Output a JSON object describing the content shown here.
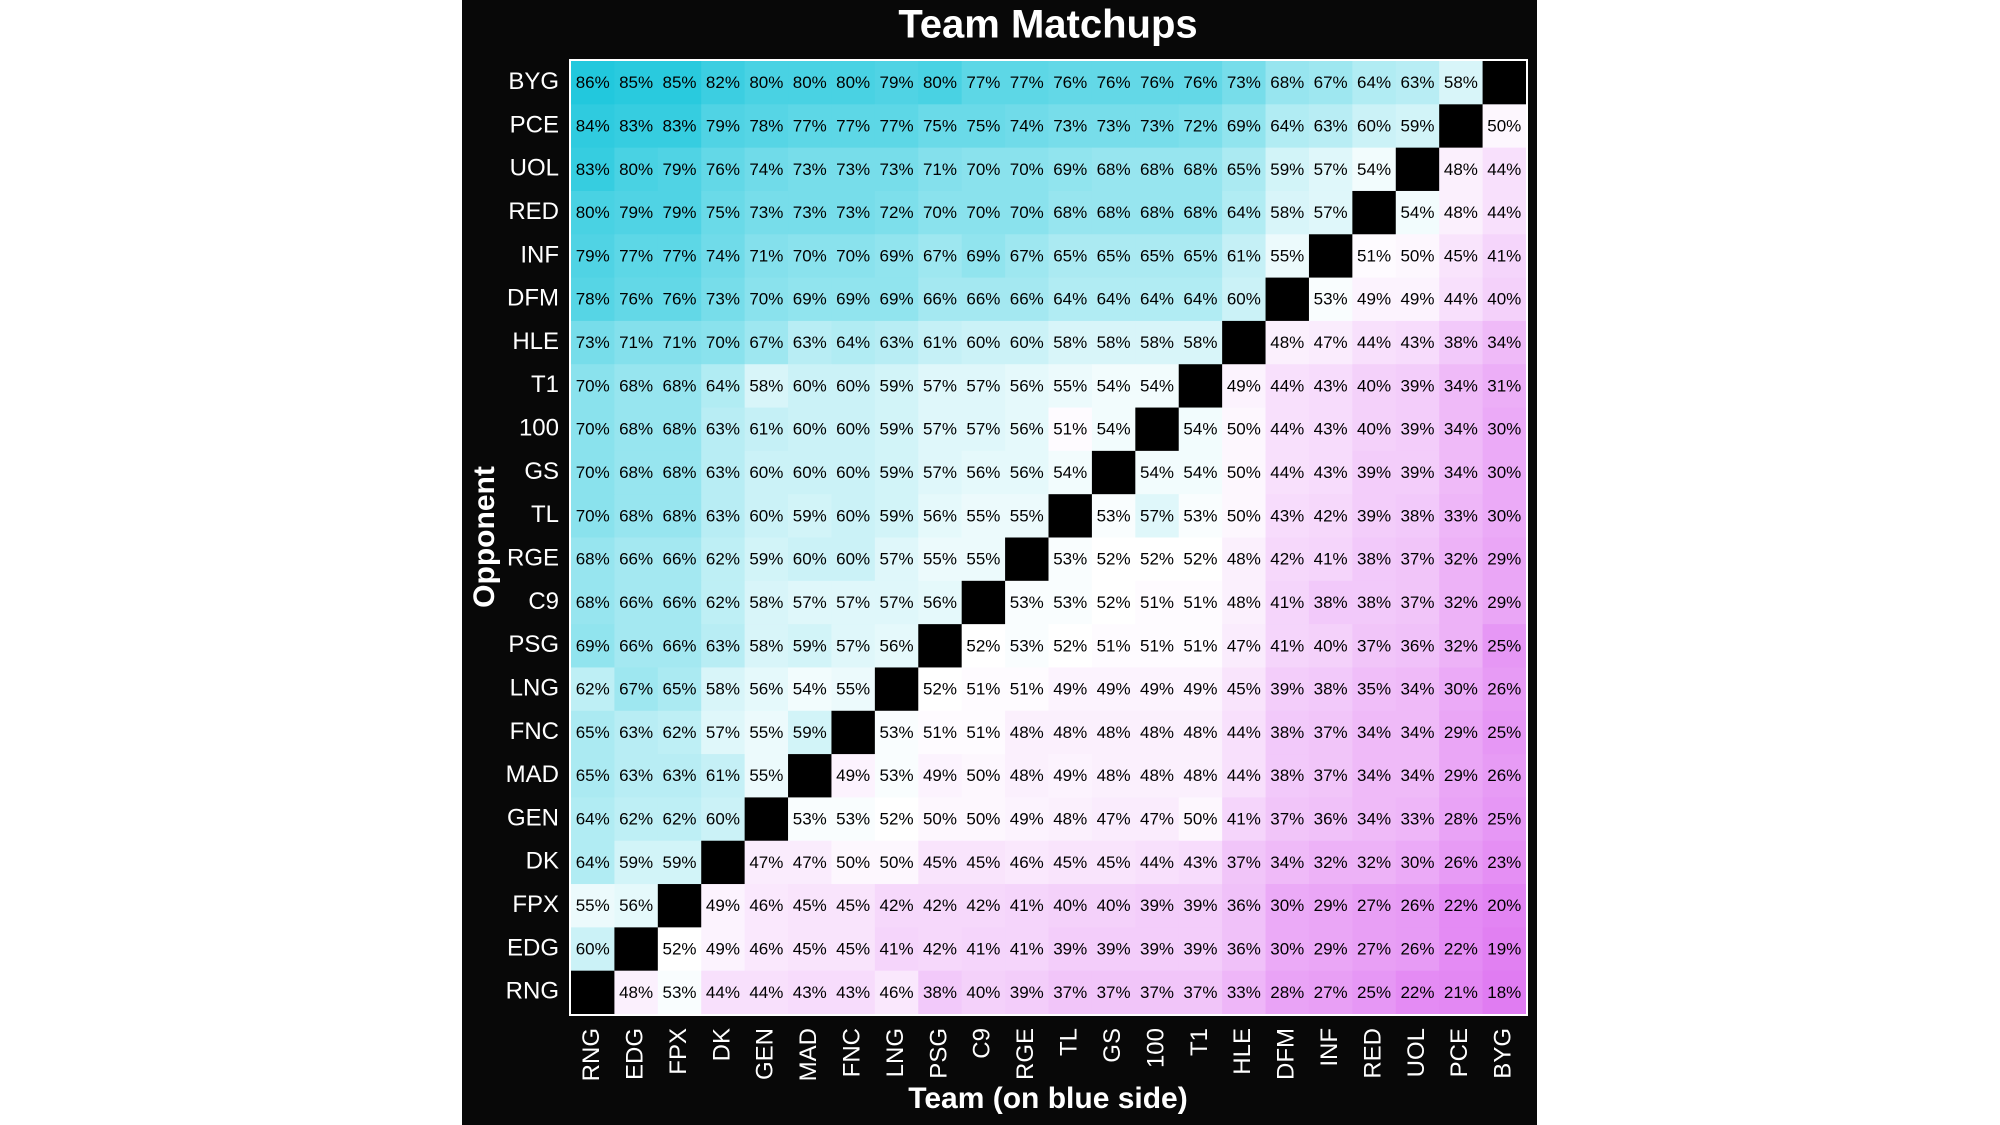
{
  "chart_data": {
    "type": "heatmap",
    "title": "Team Matchups",
    "x_label": "Team (on blue side)",
    "y_label": "Opponent",
    "x_categories": [
      "RNG",
      "EDG",
      "FPX",
      "DK",
      "GEN",
      "MAD",
      "FNC",
      "LNG",
      "PSG",
      "C9",
      "RGE",
      "TL",
      "GS",
      "100",
      "T1",
      "HLE",
      "DFM",
      "INF",
      "RED",
      "UOL",
      "PCE",
      "BYG"
    ],
    "y_categories": [
      "BYG",
      "PCE",
      "UOL",
      "RED",
      "INF",
      "DFM",
      "HLE",
      "T1",
      "100",
      "GS",
      "TL",
      "RGE",
      "C9",
      "PSG",
      "LNG",
      "FNC",
      "MAD",
      "GEN",
      "DK",
      "FPX",
      "EDG",
      "RNG"
    ],
    "colors": [
      "#e07cf2",
      "#ffffff",
      "#22c8dd"
    ],
    "values": [
      [
        86,
        85,
        85,
        82,
        80,
        80,
        80,
        79,
        80,
        77,
        77,
        76,
        76,
        76,
        76,
        73,
        68,
        67,
        64,
        63,
        58,
        null
      ],
      [
        84,
        83,
        83,
        79,
        78,
        77,
        77,
        77,
        75,
        75,
        74,
        73,
        73,
        73,
        72,
        69,
        64,
        63,
        60,
        59,
        null,
        50
      ],
      [
        83,
        80,
        79,
        76,
        74,
        73,
        73,
        73,
        71,
        70,
        70,
        69,
        68,
        68,
        68,
        65,
        59,
        57,
        54,
        null,
        48,
        44
      ],
      [
        80,
        79,
        79,
        75,
        73,
        73,
        73,
        72,
        70,
        70,
        70,
        68,
        68,
        68,
        68,
        64,
        58,
        57,
        null,
        54,
        48,
        44
      ],
      [
        79,
        77,
        77,
        74,
        71,
        70,
        70,
        69,
        67,
        69,
        67,
        65,
        65,
        65,
        65,
        61,
        55,
        null,
        51,
        50,
        45,
        41
      ],
      [
        78,
        76,
        76,
        73,
        70,
        69,
        69,
        69,
        66,
        66,
        66,
        64,
        64,
        64,
        64,
        60,
        null,
        53,
        49,
        49,
        44,
        40
      ],
      [
        73,
        71,
        71,
        70,
        67,
        63,
        64,
        63,
        61,
        60,
        60,
        58,
        58,
        58,
        58,
        null,
        48,
        47,
        44,
        43,
        38,
        34
      ],
      [
        70,
        68,
        68,
        64,
        58,
        60,
        60,
        59,
        57,
        57,
        56,
        55,
        54,
        54,
        null,
        49,
        44,
        43,
        40,
        39,
        34,
        31
      ],
      [
        70,
        68,
        68,
        63,
        61,
        60,
        60,
        59,
        57,
        57,
        56,
        51,
        54,
        null,
        54,
        50,
        44,
        43,
        40,
        39,
        34,
        30
      ],
      [
        70,
        68,
        68,
        63,
        60,
        60,
        60,
        59,
        57,
        56,
        56,
        54,
        null,
        54,
        54,
        50,
        44,
        43,
        39,
        39,
        34,
        30
      ],
      [
        70,
        68,
        68,
        63,
        60,
        59,
        60,
        59,
        56,
        55,
        55,
        null,
        53,
        57,
        53,
        50,
        43,
        42,
        39,
        38,
        33,
        30
      ],
      [
        68,
        66,
        66,
        62,
        59,
        60,
        60,
        57,
        55,
        55,
        null,
        53,
        52,
        52,
        52,
        48,
        42,
        41,
        38,
        37,
        32,
        29
      ],
      [
        68,
        66,
        66,
        62,
        58,
        57,
        57,
        57,
        56,
        null,
        53,
        53,
        52,
        51,
        51,
        48,
        41,
        38,
        38,
        37,
        32,
        29
      ],
      [
        69,
        66,
        66,
        63,
        58,
        59,
        57,
        56,
        null,
        52,
        53,
        52,
        51,
        51,
        51,
        47,
        41,
        40,
        37,
        36,
        32,
        25
      ],
      [
        62,
        67,
        65,
        58,
        56,
        54,
        55,
        null,
        52,
        51,
        51,
        49,
        49,
        49,
        49,
        45,
        39,
        38,
        35,
        34,
        30,
        26
      ],
      [
        65,
        63,
        62,
        57,
        55,
        59,
        null,
        53,
        51,
        51,
        48,
        48,
        48,
        48,
        48,
        44,
        38,
        37,
        34,
        34,
        29,
        25
      ],
      [
        65,
        63,
        63,
        61,
        55,
        null,
        49,
        53,
        49,
        50,
        48,
        49,
        48,
        48,
        48,
        44,
        38,
        37,
        34,
        34,
        29,
        26
      ],
      [
        64,
        62,
        62,
        60,
        null,
        53,
        53,
        52,
        50,
        50,
        49,
        48,
        47,
        47,
        50,
        41,
        37,
        36,
        34,
        33,
        28,
        25
      ],
      [
        64,
        59,
        59,
        null,
        47,
        47,
        50,
        50,
        45,
        45,
        46,
        45,
        45,
        44,
        43,
        37,
        34,
        32,
        32,
        30,
        26,
        23
      ],
      [
        55,
        56,
        null,
        49,
        46,
        45,
        45,
        42,
        42,
        42,
        41,
        40,
        40,
        39,
        39,
        36,
        30,
        29,
        27,
        26,
        22,
        20
      ],
      [
        60,
        null,
        52,
        49,
        46,
        45,
        45,
        41,
        42,
        41,
        41,
        39,
        39,
        39,
        39,
        36,
        30,
        29,
        27,
        26,
        22,
        19
      ],
      [
        null,
        48,
        53,
        44,
        44,
        43,
        43,
        46,
        38,
        40,
        39,
        37,
        37,
        37,
        37,
        33,
        28,
        27,
        25,
        22,
        21,
        18
      ]
    ],
    "value_labels": [
      [
        "86%",
        "85%",
        "85%",
        "82%",
        "80%",
        "80%",
        "80%",
        "79%",
        "80%",
        "77%",
        "77%",
        "76%",
        "76%",
        "76%",
        "76%",
        "73%",
        "68%",
        "67%",
        "64%",
        "63%",
        "58%",
        null
      ],
      [
        "84%",
        "83%",
        "83%",
        "79%",
        "78%",
        "77%",
        "77%",
        "77%",
        "75%",
        "75%",
        "74%",
        "73%",
        "73%",
        "73%",
        "72%",
        "69%",
        "64%",
        "63%",
        "60%",
        "59%",
        null,
        "50%"
      ],
      [
        "83%",
        "80%",
        "79%",
        "76%",
        "74%",
        "73%",
        "73%",
        "73%",
        "71%",
        "70%",
        "70%",
        "69%",
        "68%",
        "68%",
        "68%",
        "65%",
        "59%",
        "57%",
        "54%",
        null,
        "48%",
        "44%"
      ],
      [
        "80%",
        "79%",
        "79%",
        "75%",
        "73%",
        "73%",
        "73%",
        "72%",
        "70%",
        "70%",
        "70%",
        "68%",
        "68%",
        "68%",
        "68%",
        "64%",
        "58%",
        "57%",
        null,
        "54%",
        "48%",
        "44%"
      ],
      [
        "79%",
        "77%",
        "77%",
        "74%",
        "71%",
        "70%",
        "70%",
        "69%",
        "67%",
        "69%",
        "67%",
        "65%",
        "65%",
        "65%",
        "65%",
        "61%",
        "55%",
        null,
        "51%",
        "50%",
        "45%",
        "41%"
      ],
      [
        "78%",
        "76%",
        "76%",
        "73%",
        "70%",
        "69%",
        "69%",
        "69%",
        "66%",
        "66%",
        "66%",
        "64%",
        "64%",
        "64%",
        "64%",
        "60%",
        null,
        "53%",
        "49%",
        "49%",
        "44%",
        "40%"
      ],
      [
        "73%",
        "71%",
        "71%",
        "70%",
        "67%",
        "63%",
        "64%",
        "63%",
        "61%",
        "60%",
        "60%",
        "58%",
        "58%",
        "58%",
        "58%",
        null,
        "48%",
        "47%",
        "44%",
        "43%",
        "38%",
        "34%"
      ],
      [
        "70%",
        "68%",
        "68%",
        "64%",
        "58%",
        "60%",
        "60%",
        "59%",
        "57%",
        "57%",
        "56%",
        "55%",
        "54%",
        "54%",
        null,
        "49%",
        "44%",
        "43%",
        "40%",
        "39%",
        "34%",
        "31%"
      ],
      [
        "70%",
        "68%",
        "68%",
        "63%",
        "61%",
        "60%",
        "60%",
        "59%",
        "57%",
        "57%",
        "56%",
        "51%",
        "54%",
        null,
        "54%",
        "50%",
        "44%",
        "43%",
        "40%",
        "39%",
        "34%",
        "30%"
      ],
      [
        "70%",
        "68%",
        "68%",
        "63%",
        "60%",
        "60%",
        "60%",
        "59%",
        "57%",
        "56%",
        "56%",
        "54%",
        null,
        "54%",
        "54%",
        "50%",
        "44%",
        "43%",
        "39%",
        "39%",
        "34%",
        "30%"
      ],
      [
        "70%",
        "68%",
        "68%",
        "63%",
        "60%",
        "59%",
        "60%",
        "59%",
        "56%",
        "55%",
        "55%",
        null,
        "53%",
        "57%",
        "53%",
        "50%",
        "43%",
        "42%",
        "39%",
        "38%",
        "33%",
        "30%"
      ],
      [
        "68%",
        "66%",
        "66%",
        "62%",
        "59%",
        "60%",
        "60%",
        "57%",
        "55%",
        "55%",
        null,
        "53%",
        "52%",
        "52%",
        "52%",
        "48%",
        "42%",
        "41%",
        "38%",
        "37%",
        "32%",
        "29%"
      ],
      [
        "68%",
        "66%",
        "66%",
        "62%",
        "58%",
        "57%",
        "57%",
        "57%",
        "56%",
        null,
        "53%",
        "53%",
        "52%",
        "51%",
        "51%",
        "48%",
        "41%",
        "38%",
        "38%",
        "37%",
        "32%",
        "29%"
      ],
      [
        "69%",
        "66%",
        "66%",
        "63%",
        "58%",
        "59%",
        "57%",
        "56%",
        null,
        "52%",
        "53%",
        "52%",
        "51%",
        "51%",
        "51%",
        "47%",
        "41%",
        "40%",
        "37%",
        "36%",
        "32%",
        "25%"
      ],
      [
        "62%",
        "67%",
        "65%",
        "58%",
        "56%",
        "54%",
        "55%",
        null,
        "52%",
        "51%",
        "51%",
        "49%",
        "49%",
        "49%",
        "49%",
        "45%",
        "39%",
        "38%",
        "35%",
        "34%",
        "30%",
        "26%"
      ],
      [
        "65%",
        "63%",
        "62%",
        "57%",
        "55%",
        "59%",
        null,
        "53%",
        "51%",
        "51%",
        "48%",
        "48%",
        "48%",
        "48%",
        "48%",
        "44%",
        "38%",
        "37%",
        "34%",
        "34%",
        "29%",
        "25%"
      ],
      [
        "65%",
        "63%",
        "63%",
        "61%",
        "55%",
        null,
        "49%",
        "53%",
        "49%",
        "50%",
        "48%",
        "49%",
        "48%",
        "48%",
        "48%",
        "44%",
        "38%",
        "37%",
        "34%",
        "34%",
        "29%",
        "26%"
      ],
      [
        "64%",
        "62%",
        "62%",
        "60%",
        null,
        "53%",
        "53%",
        "52%",
        "50%",
        "50%",
        "49%",
        "48%",
        "47%",
        "47%",
        "50%",
        "41%",
        "37%",
        "36%",
        "34%",
        "33%",
        "28%",
        "25%"
      ],
      [
        "64%",
        "59%",
        "59%",
        null,
        "47%",
        "47%",
        "50%",
        "50%",
        "45%",
        "45%",
        "46%",
        "45%",
        "45%",
        "44%",
        "43%",
        "37%",
        "34%",
        "32%",
        "32%",
        "30%",
        "26%",
        "23%"
      ],
      [
        "55%",
        "56%",
        null,
        "49%",
        "46%",
        "45%",
        "45%",
        "42%",
        "42%",
        "42%",
        "41%",
        "40%",
        "40%",
        "39%",
        "39%",
        "36%",
        "30%",
        "29%",
        "27%",
        "26%",
        "22%",
        "20%"
      ],
      [
        "60%",
        null,
        "52%",
        "49%",
        "46%",
        "45%",
        "45%",
        "41%",
        "42%",
        "41%",
        "41%",
        "39%",
        "39%",
        "39%",
        "39%",
        "36%",
        "30%",
        "29%",
        "27%",
        "26%",
        "22%",
        "19%"
      ],
      [
        null,
        "48%",
        "53%",
        "44%",
        "44%",
        "43%",
        "43%",
        "46%",
        "38%",
        "40%",
        "39%",
        "37%",
        "37%",
        "37%",
        "37%",
        "33%",
        "28%",
        "27%",
        "25%",
        "22%",
        "21%",
        "18%"
      ]
    ]
  }
}
